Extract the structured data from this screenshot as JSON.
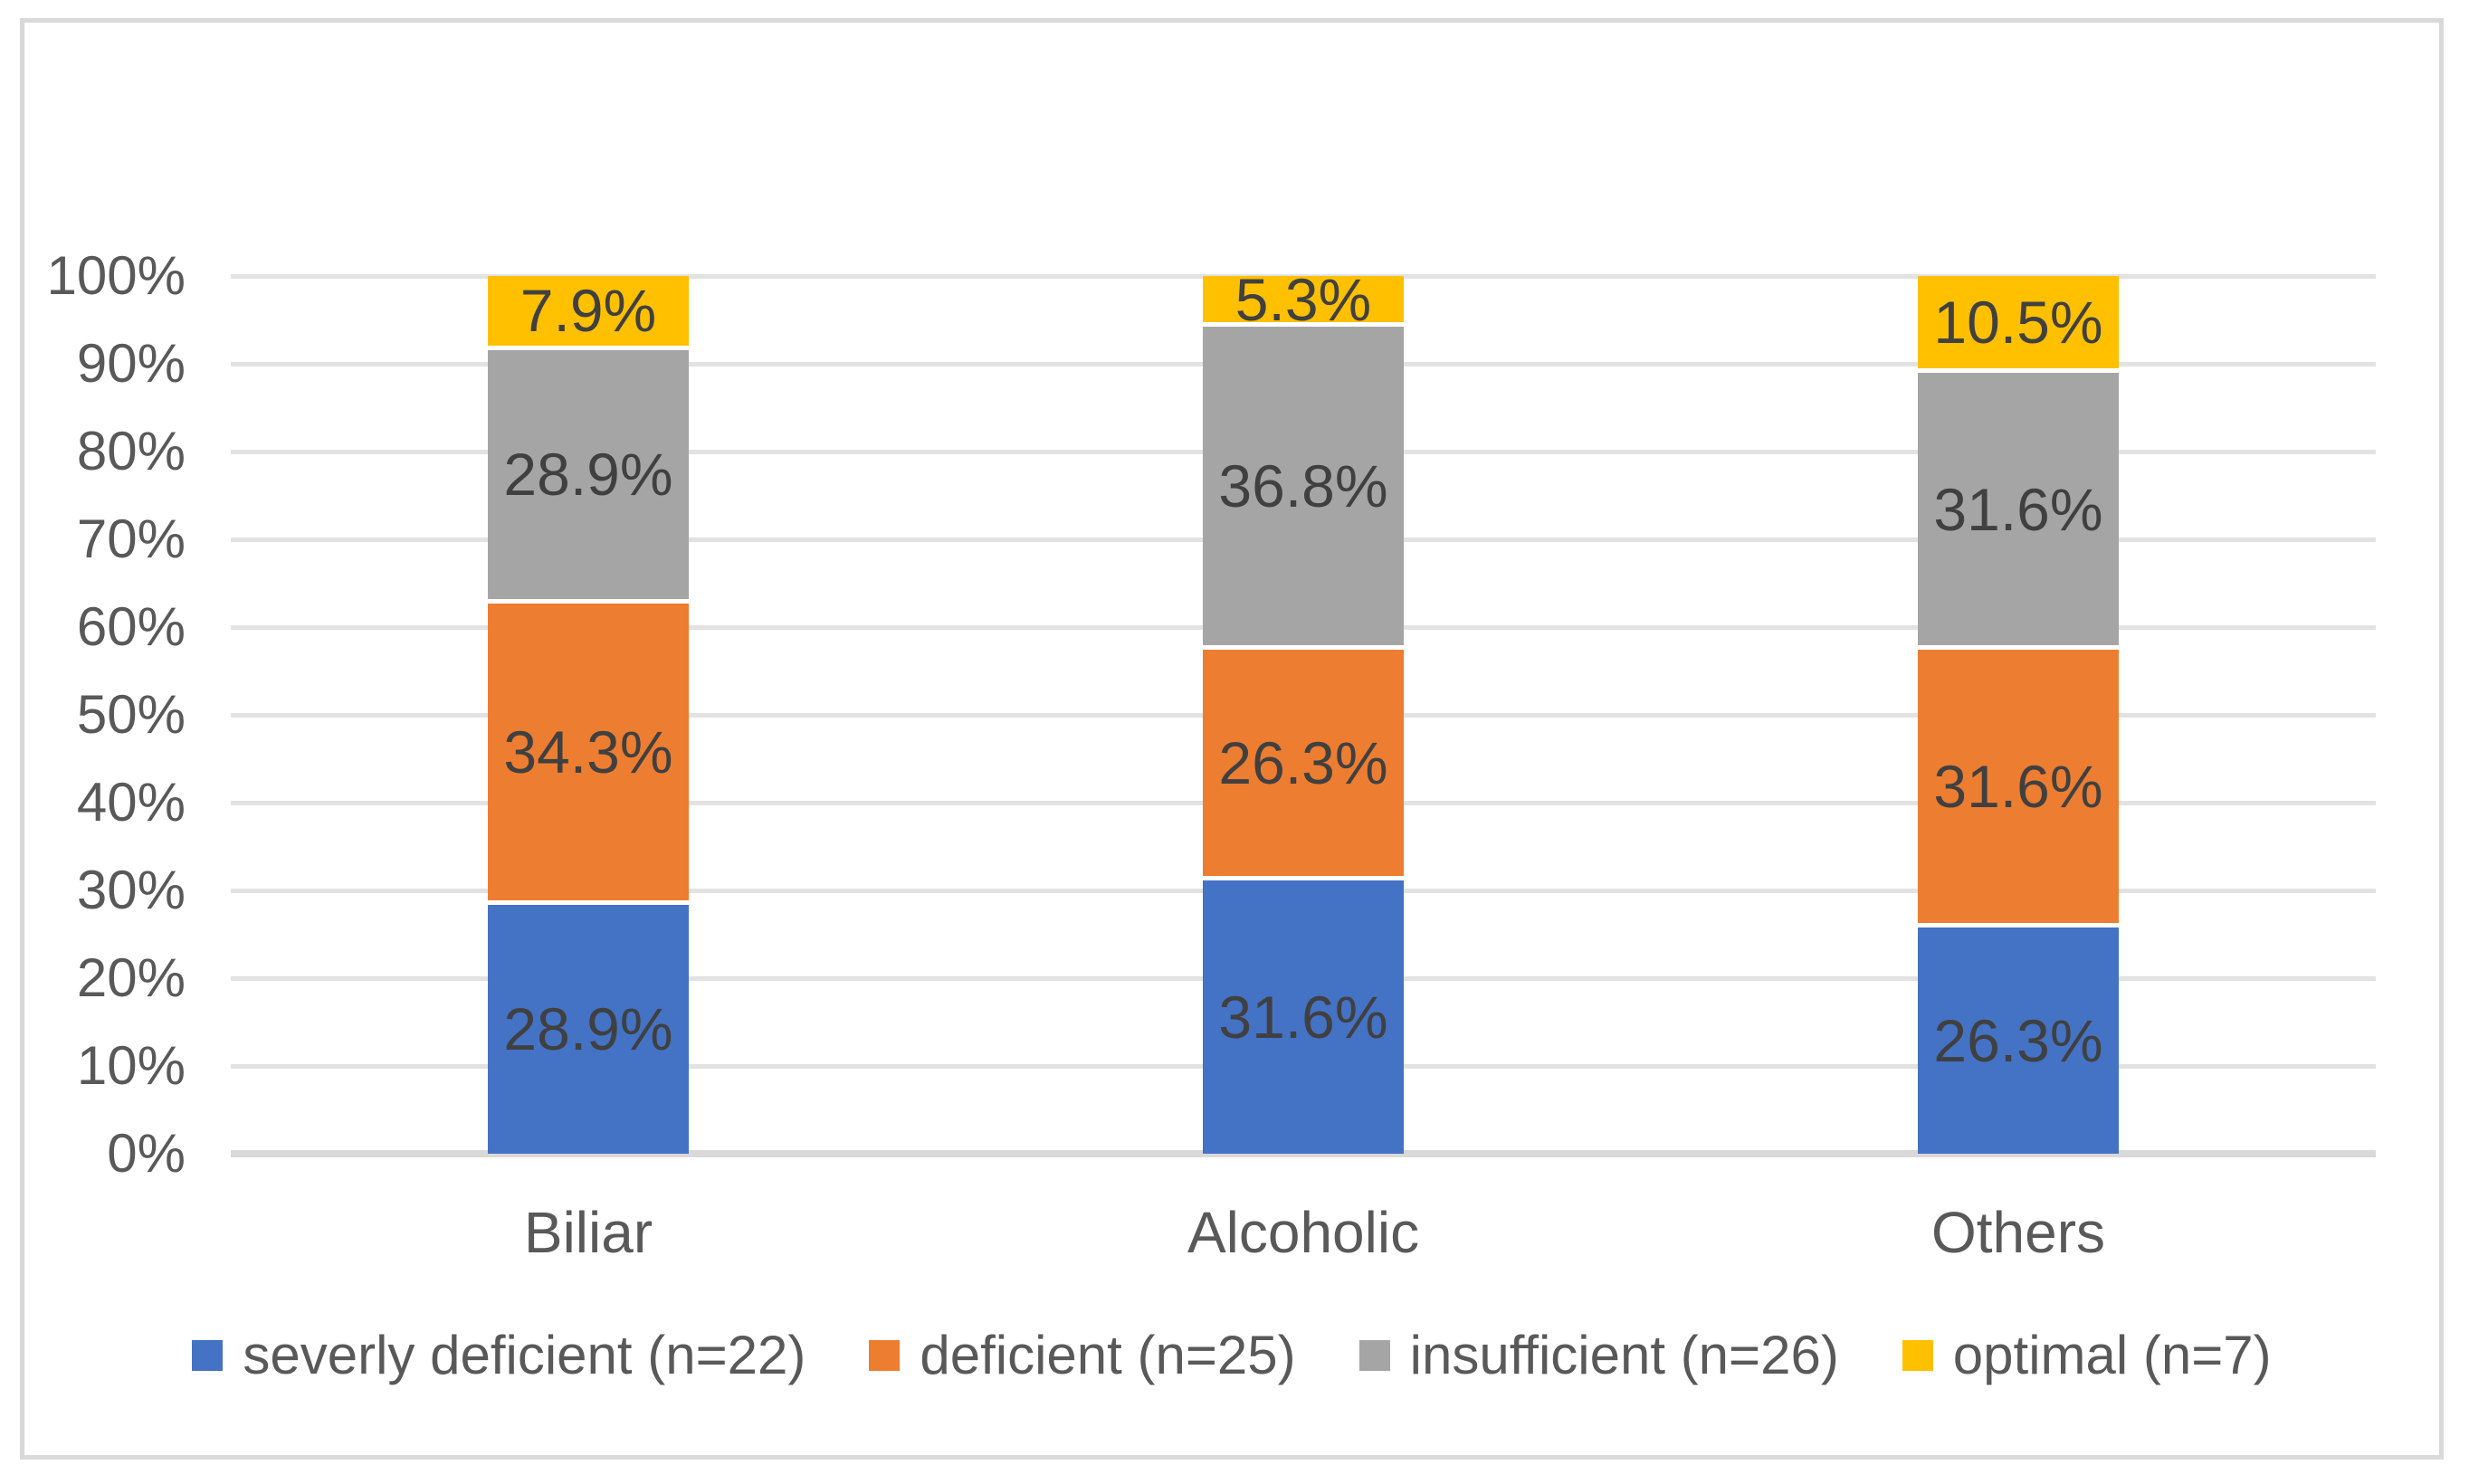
{
  "chart_data": {
    "type": "bar",
    "stacked": true,
    "percent_stacked": true,
    "title": "",
    "xlabel": "",
    "ylabel": "",
    "categories": [
      "Biliar",
      "Alcoholic",
      "Others"
    ],
    "series": [
      {
        "name": "severly deficient (n=22)",
        "color": "#4472C4",
        "values": [
          28.9,
          31.6,
          26.3
        ],
        "labels": [
          "28.9%",
          "31.6%",
          "26.3%"
        ]
      },
      {
        "name": "deficient (n=25)",
        "color": "#ED7D31",
        "values": [
          34.3,
          26.3,
          31.6
        ],
        "labels": [
          "34.3%",
          "26.3%",
          "31.6%"
        ]
      },
      {
        "name": "insufficient (n=26)",
        "color": "#A5A5A5",
        "values": [
          28.9,
          36.8,
          31.6
        ],
        "labels": [
          "28.9%",
          "36.8%",
          "31.6%"
        ]
      },
      {
        "name": "optimal (n=7)",
        "color": "#FFC000",
        "values": [
          7.9,
          5.3,
          10.5
        ],
        "labels": [
          "7.9%",
          "5.3%",
          "10.5%"
        ]
      }
    ],
    "y_axis": {
      "min": 0,
      "max": 100,
      "step": 10,
      "ticks": [
        "0%",
        "10%",
        "20%",
        "30%",
        "40%",
        "50%",
        "60%",
        "70%",
        "80%",
        "90%",
        "100%"
      ]
    },
    "grid": true,
    "legend_position": "bottom"
  },
  "styles": {
    "frame_border_color": "#D9D9D9",
    "grid_color": "#E2E2E2",
    "axis_line_color": "#D9D9D9",
    "tick_text_color": "#595959",
    "data_label_color": "#404040",
    "background": "#FFFFFF"
  }
}
